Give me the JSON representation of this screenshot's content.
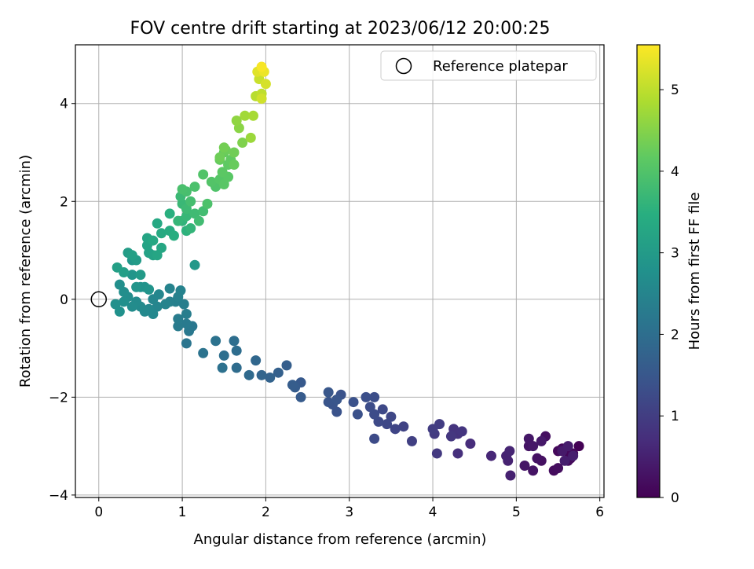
{
  "chart_data": {
    "type": "scatter",
    "title": "FOV centre drift starting at 2023/06/12 20:00:25",
    "xlabel": "Angular distance from reference (arcmin)",
    "ylabel": "Rotation from reference (arcmin)",
    "xlim": [
      -0.28,
      6.05
    ],
    "ylim": [
      -4.05,
      5.2
    ],
    "xticks": [
      0,
      1,
      2,
      3,
      4,
      5,
      6
    ],
    "yticks": [
      -4,
      -2,
      0,
      2,
      4
    ],
    "xtick_labels": [
      "0",
      "1",
      "2",
      "3",
      "4",
      "5",
      "6"
    ],
    "ytick_labels": [
      "−4",
      "−2",
      "0",
      "2",
      "4"
    ],
    "grid": true,
    "legend": {
      "placement": "top-right",
      "entries": [
        {
          "label": "Reference platepar",
          "marker": "open-circle"
        }
      ]
    },
    "reference": {
      "x": 0,
      "y": 0
    },
    "colorbar": {
      "label": "Hours from first FF file",
      "colormap": "viridis",
      "range": [
        0,
        5.55
      ],
      "ticks": [
        0,
        1,
        2,
        3,
        4,
        5
      ],
      "tick_labels": [
        "0",
        "1",
        "2",
        "3",
        "4",
        "5"
      ]
    },
    "series": [
      {
        "points": [
          [
            5.75,
            -3.0,
            0.02
          ],
          [
            5.65,
            -3.25,
            0.05
          ],
          [
            5.6,
            -3.1,
            0.08
          ],
          [
            5.55,
            -3.05,
            0.1
          ],
          [
            5.5,
            -3.1,
            0.12
          ],
          [
            5.62,
            -3.3,
            0.14
          ],
          [
            5.68,
            -3.15,
            0.16
          ],
          [
            5.45,
            -3.5,
            0.18
          ],
          [
            5.5,
            -3.45,
            0.2
          ],
          [
            5.35,
            -2.8,
            0.22
          ],
          [
            5.3,
            -3.3,
            0.24
          ],
          [
            5.25,
            -3.25,
            0.26
          ],
          [
            5.2,
            -3.5,
            0.28
          ],
          [
            5.15,
            -3.0,
            0.3
          ],
          [
            5.1,
            -3.4,
            0.32
          ],
          [
            5.15,
            -2.85,
            0.34
          ],
          [
            5.2,
            -3.0,
            0.36
          ],
          [
            5.3,
            -2.9,
            0.38
          ],
          [
            5.55,
            -3.1,
            0.4
          ],
          [
            5.62,
            -3.0,
            0.42
          ],
          [
            5.58,
            -3.3,
            0.44
          ],
          [
            5.68,
            -3.2,
            0.46
          ],
          [
            4.93,
            -3.6,
            0.5
          ],
          [
            4.9,
            -3.3,
            0.52
          ],
          [
            4.88,
            -3.2,
            0.54
          ],
          [
            4.92,
            -3.1,
            0.56
          ],
          [
            4.7,
            -3.2,
            0.6
          ],
          [
            4.45,
            -2.95,
            0.7
          ],
          [
            4.3,
            -3.15,
            0.75
          ],
          [
            4.3,
            -2.75,
            0.8
          ],
          [
            4.25,
            -2.65,
            0.82
          ],
          [
            4.35,
            -2.7,
            0.85
          ],
          [
            4.22,
            -2.8,
            0.88
          ],
          [
            4.05,
            -3.15,
            0.92
          ],
          [
            4.02,
            -2.75,
            0.95
          ],
          [
            4.08,
            -2.55,
            0.98
          ],
          [
            4.0,
            -2.65,
            1.0
          ],
          [
            3.75,
            -2.9,
            1.05
          ],
          [
            3.65,
            -2.6,
            1.1
          ],
          [
            3.55,
            -2.65,
            1.15
          ],
          [
            3.5,
            -2.4,
            1.18
          ],
          [
            3.45,
            -2.55,
            1.2
          ],
          [
            3.4,
            -2.25,
            1.22
          ],
          [
            3.35,
            -2.5,
            1.24
          ],
          [
            3.3,
            -2.85,
            1.26
          ],
          [
            3.3,
            -2.35,
            1.28
          ],
          [
            3.25,
            -2.2,
            1.3
          ],
          [
            3.3,
            -2.0,
            1.32
          ],
          [
            3.2,
            -2.0,
            1.34
          ],
          [
            3.1,
            -2.35,
            1.36
          ],
          [
            3.05,
            -2.1,
            1.38
          ],
          [
            2.9,
            -1.95,
            1.4
          ],
          [
            2.85,
            -2.3,
            1.42
          ],
          [
            2.8,
            -2.15,
            1.44
          ],
          [
            2.75,
            -2.1,
            1.46
          ],
          [
            2.85,
            -2.05,
            1.48
          ],
          [
            2.75,
            -1.9,
            1.5
          ],
          [
            2.42,
            -1.7,
            1.55
          ],
          [
            2.42,
            -2.0,
            1.58
          ],
          [
            2.35,
            -1.8,
            1.6
          ],
          [
            2.32,
            -1.75,
            1.62
          ],
          [
            2.25,
            -1.35,
            1.65
          ],
          [
            2.15,
            -1.5,
            1.7
          ],
          [
            2.05,
            -1.6,
            1.75
          ],
          [
            1.95,
            -1.55,
            1.8
          ],
          [
            1.88,
            -1.25,
            1.85
          ],
          [
            1.8,
            -1.55,
            1.9
          ],
          [
            1.65,
            -1.4,
            1.95
          ],
          [
            1.65,
            -1.05,
            1.98
          ],
          [
            1.62,
            -0.85,
            2.0
          ],
          [
            1.5,
            -1.15,
            2.02
          ],
          [
            1.48,
            -1.4,
            2.05
          ],
          [
            1.4,
            -0.85,
            2.08
          ],
          [
            1.25,
            -1.1,
            2.1
          ],
          [
            1.05,
            -0.9,
            2.15
          ],
          [
            1.12,
            -0.55,
            2.2
          ],
          [
            1.08,
            -0.65,
            2.22
          ],
          [
            1.05,
            -0.5,
            2.25
          ],
          [
            0.95,
            -0.55,
            2.28
          ],
          [
            0.95,
            -0.4,
            2.3
          ],
          [
            1.05,
            -0.3,
            2.32
          ],
          [
            1.02,
            -0.1,
            2.35
          ],
          [
            0.92,
            -0.05,
            2.38
          ],
          [
            0.85,
            -0.05,
            2.4
          ],
          [
            0.95,
            0.05,
            2.42
          ],
          [
            0.98,
            0.18,
            2.44
          ],
          [
            0.85,
            0.22,
            2.46
          ],
          [
            0.8,
            -0.1,
            2.48
          ],
          [
            0.7,
            -0.15,
            2.5
          ],
          [
            0.72,
            0.1,
            2.52
          ],
          [
            0.65,
            0.0,
            2.54
          ],
          [
            0.65,
            -0.3,
            2.56
          ],
          [
            0.6,
            -0.2,
            2.58
          ],
          [
            0.55,
            -0.25,
            2.6
          ],
          [
            0.5,
            -0.15,
            2.62
          ],
          [
            0.45,
            -0.05,
            2.64
          ],
          [
            0.4,
            -0.15,
            2.66
          ],
          [
            0.35,
            0.05,
            2.68
          ],
          [
            0.3,
            0.15,
            2.7
          ],
          [
            0.3,
            -0.05,
            2.72
          ],
          [
            0.25,
            0.3,
            2.74
          ],
          [
            0.2,
            -0.1,
            2.76
          ],
          [
            0.25,
            -0.25,
            2.78
          ],
          [
            0.5,
            0.25,
            2.8
          ],
          [
            0.55,
            0.25,
            2.82
          ],
          [
            0.6,
            0.2,
            2.84
          ],
          [
            0.45,
            0.25,
            2.86
          ],
          [
            0.4,
            0.5,
            2.88
          ],
          [
            0.4,
            0.8,
            2.9
          ],
          [
            1.15,
            0.7,
            2.95
          ],
          [
            0.5,
            0.5,
            3.0
          ],
          [
            0.45,
            0.8,
            3.02
          ],
          [
            0.35,
            0.95,
            3.05
          ],
          [
            0.3,
            0.55,
            3.08
          ],
          [
            0.22,
            0.65,
            3.1
          ],
          [
            0.4,
            0.9,
            3.12
          ],
          [
            0.6,
            0.95,
            3.15
          ],
          [
            0.65,
            0.9,
            3.18
          ],
          [
            0.58,
            1.1,
            3.2
          ],
          [
            0.58,
            1.25,
            3.22
          ],
          [
            0.7,
            0.9,
            3.25
          ],
          [
            0.75,
            1.05,
            3.28
          ],
          [
            0.65,
            1.2,
            3.3
          ],
          [
            0.7,
            1.55,
            3.32
          ],
          [
            0.75,
            1.35,
            3.35
          ],
          [
            0.85,
            1.4,
            3.4
          ],
          [
            0.9,
            1.3,
            3.45
          ],
          [
            0.85,
            1.75,
            3.5
          ],
          [
            1.05,
            1.4,
            3.55
          ],
          [
            1.0,
            1.6,
            3.6
          ],
          [
            1.1,
            1.45,
            3.62
          ],
          [
            0.95,
            1.6,
            3.65
          ],
          [
            1.05,
            1.7,
            3.68
          ],
          [
            1.0,
            1.95,
            3.7
          ],
          [
            0.98,
            2.1,
            3.72
          ],
          [
            1.05,
            1.85,
            3.75
          ],
          [
            1.15,
            1.75,
            3.78
          ],
          [
            1.2,
            1.6,
            3.8
          ],
          [
            1.25,
            1.8,
            3.82
          ],
          [
            1.1,
            2.0,
            3.85
          ],
          [
            1.05,
            2.2,
            3.88
          ],
          [
            1.0,
            2.25,
            3.9
          ],
          [
            1.15,
            2.3,
            3.92
          ],
          [
            1.3,
            1.95,
            3.95
          ],
          [
            1.4,
            2.3,
            3.98
          ],
          [
            1.25,
            2.55,
            4.0
          ],
          [
            1.35,
            2.4,
            4.02
          ],
          [
            1.45,
            2.45,
            4.05
          ],
          [
            1.5,
            2.35,
            4.08
          ],
          [
            1.55,
            2.5,
            4.1
          ],
          [
            1.48,
            2.6,
            4.12
          ],
          [
            1.55,
            2.75,
            4.15
          ],
          [
            1.58,
            2.85,
            4.18
          ],
          [
            1.5,
            3.0,
            4.2
          ],
          [
            1.45,
            2.85,
            4.22
          ],
          [
            1.62,
            2.75,
            4.25
          ],
          [
            1.52,
            3.05,
            4.28
          ],
          [
            1.45,
            2.9,
            4.3
          ],
          [
            1.62,
            3.0,
            4.32
          ],
          [
            1.5,
            3.1,
            4.35
          ],
          [
            1.72,
            3.2,
            4.45
          ],
          [
            1.68,
            3.5,
            4.55
          ],
          [
            1.65,
            3.65,
            4.6
          ],
          [
            1.82,
            3.3,
            4.7
          ],
          [
            1.75,
            3.75,
            4.75
          ],
          [
            1.85,
            3.75,
            4.8
          ],
          [
            1.88,
            4.15,
            4.95
          ],
          [
            1.95,
            4.2,
            5.0
          ],
          [
            1.92,
            4.5,
            5.1
          ],
          [
            1.95,
            4.1,
            5.15
          ],
          [
            2.0,
            4.4,
            5.2
          ],
          [
            1.9,
            4.65,
            5.3
          ],
          [
            1.98,
            4.65,
            5.4
          ],
          [
            1.95,
            4.75,
            5.5
          ]
        ]
      }
    ]
  }
}
